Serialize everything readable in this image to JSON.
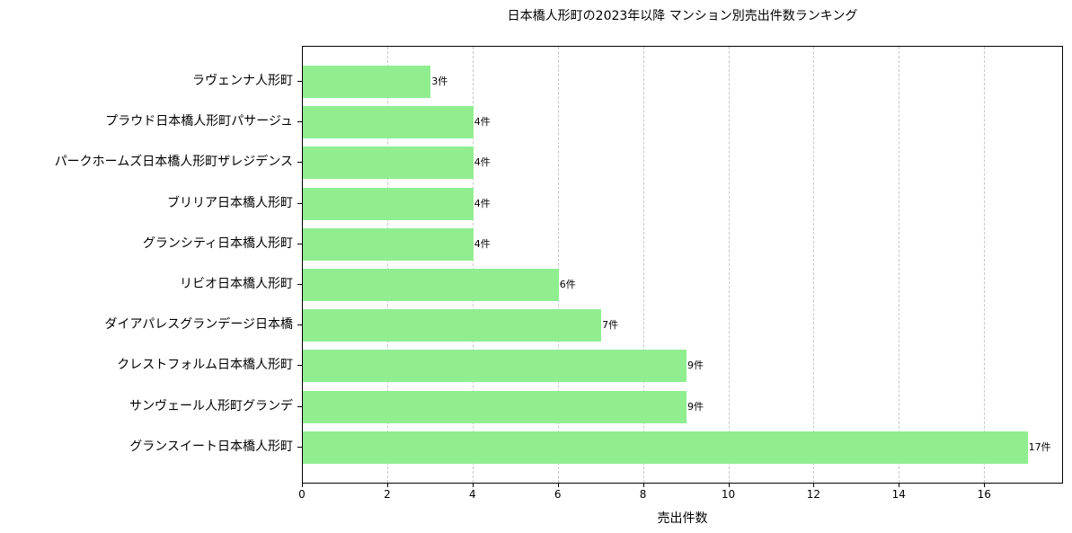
{
  "chart_data": {
    "type": "bar",
    "orientation": "horizontal",
    "title": "日本橋人形町の2023年以降 マンション別売出件数ランキング",
    "xlabel": "売出件数",
    "ylabel": "",
    "xlim": [
      0,
      17.85
    ],
    "xticks": [
      "0",
      "2",
      "4",
      "6",
      "8",
      "10",
      "12",
      "14",
      "16"
    ],
    "grid": "x-dashed",
    "bar_color": "#90ee90",
    "label_suffix": "件",
    "categories": [
      "ラヴェンナ人形町",
      "プラウド日本橋人形町パサージュ",
      "パークホームズ日本橋人形町ザレジデンス",
      "ブリリア日本橋人形町",
      "グランシティ日本橋人形町",
      "リビオ日本橋人形町",
      "ダイアパレスグランデージ日本橋",
      "クレストフォルム日本橋人形町",
      "サンヴェール人形町グランデ",
      "グランスイート日本橋人形町"
    ],
    "values": [
      3,
      4,
      4,
      4,
      4,
      6,
      7,
      9,
      9,
      17
    ],
    "value_labels": [
      "3件",
      "4件",
      "4件",
      "4件",
      "4件",
      "6件",
      "7件",
      "9件",
      "9件",
      "17件"
    ]
  }
}
